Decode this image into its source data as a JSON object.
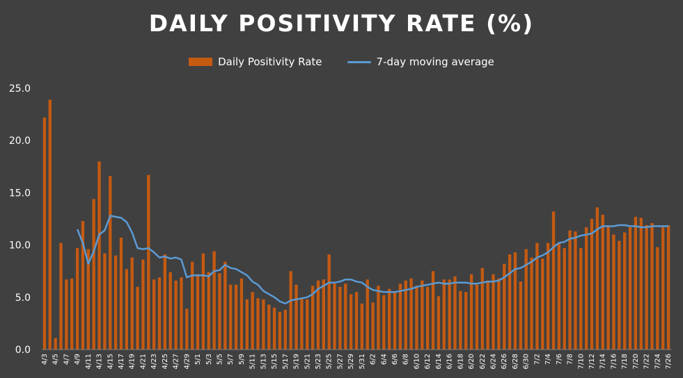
{
  "chart_data": {
    "type": "bar",
    "title": "DAILY POSITIVITY RATE (%)",
    "xlabel": "",
    "ylabel": "",
    "ylim": [
      0,
      25
    ],
    "yticks": [
      "0.0",
      "5.0",
      "10.0",
      "15.0",
      "20.0",
      "25.0"
    ],
    "grid": false,
    "legend_position": "top",
    "colors": {
      "bar": "#c55a11",
      "line": "#5b9bd5",
      "background": "#404040"
    },
    "categories": [
      "4/3",
      "4/4",
      "4/5",
      "4/6",
      "4/7",
      "4/8",
      "4/9",
      "4/10",
      "4/11",
      "4/12",
      "4/13",
      "4/14",
      "4/15",
      "4/16",
      "4/17",
      "4/18",
      "4/19",
      "4/20",
      "4/21",
      "4/22",
      "4/23",
      "4/24",
      "4/25",
      "4/26",
      "4/27",
      "4/28",
      "4/29",
      "4/30",
      "5/1",
      "5/2",
      "5/3",
      "5/4",
      "5/5",
      "5/6",
      "5/7",
      "5/8",
      "5/9",
      "5/10",
      "5/11",
      "5/12",
      "5/13",
      "5/14",
      "5/15",
      "5/16",
      "5/17",
      "5/18",
      "5/19",
      "5/20",
      "5/21",
      "5/22",
      "5/23",
      "5/24",
      "5/25",
      "5/26",
      "5/27",
      "5/28",
      "5/29",
      "5/30",
      "5/31",
      "6/1",
      "6/2",
      "6/3",
      "6/4",
      "6/5",
      "6/6",
      "6/7",
      "6/8",
      "6/9",
      "6/10",
      "6/11",
      "6/12",
      "6/13",
      "6/14",
      "6/15",
      "6/16",
      "6/17",
      "6/18",
      "6/19",
      "6/20",
      "6/21",
      "6/22",
      "6/23",
      "6/24",
      "6/25",
      "6/26",
      "6/27",
      "6/28",
      "6/29",
      "6/30",
      "7/1",
      "7/2",
      "7/3",
      "7/4",
      "7/5",
      "7/6",
      "7/7",
      "7/8",
      "7/9",
      "7/10",
      "7/11",
      "7/12",
      "7/13",
      "7/14",
      "7/15",
      "7/16",
      "7/17",
      "7/18",
      "7/19",
      "7/20",
      "7/21",
      "7/22",
      "7/23",
      "7/24",
      "7/25",
      "7/26"
    ],
    "x_tick_labels": [
      "4/3",
      "4/5",
      "4/7",
      "4/9",
      "4/11",
      "4/13",
      "4/15",
      "4/17",
      "4/19",
      "4/21",
      "4/23",
      "4/25",
      "4/27",
      "4/29",
      "5/1",
      "5/3",
      "5/5",
      "5/7",
      "5/9",
      "5/11",
      "5/13",
      "5/15",
      "5/17",
      "5/19",
      "5/21",
      "5/23",
      "5/25",
      "5/27",
      "5/29",
      "5/31",
      "6/2",
      "6/4",
      "6/6",
      "6/8",
      "6/10",
      "6/12",
      "6/14",
      "6/16",
      "6/18",
      "6/20",
      "6/22",
      "6/24",
      "6/26",
      "6/28",
      "6/30",
      "7/2",
      "7/4",
      "7/6",
      "7/8",
      "7/10",
      "7/12",
      "7/14",
      "7/16",
      "7/18",
      "7/20",
      "7/22",
      "7/24",
      "7/26"
    ],
    "series": [
      {
        "name": "Daily Positivity Rate",
        "type": "bar",
        "values": [
          22.2,
          23.9,
          1.1,
          10.2,
          6.7,
          6.8,
          9.7,
          12.3,
          9.6,
          14.4,
          18.0,
          9.2,
          16.6,
          9.0,
          10.7,
          7.7,
          8.8,
          6.0,
          8.6,
          16.7,
          6.7,
          6.9,
          9.1,
          7.4,
          6.6,
          6.9,
          3.9,
          8.4,
          7.2,
          9.2,
          7.4,
          9.4,
          7.3,
          8.4,
          6.2,
          6.2,
          6.8,
          4.8,
          5.5,
          4.9,
          4.8,
          4.3,
          4.0,
          3.6,
          3.8,
          7.5,
          6.2,
          4.9,
          4.8,
          6.1,
          6.6,
          6.7,
          9.1,
          6.3,
          6.0,
          6.3,
          5.3,
          5.5,
          4.4,
          6.7,
          4.5,
          6.1,
          5.2,
          5.8,
          5.5,
          6.3,
          6.6,
          6.8,
          6.1,
          6.6,
          6.0,
          7.5,
          5.1,
          6.7,
          6.7,
          7.0,
          5.6,
          5.5,
          7.2,
          6.2,
          7.8,
          6.6,
          7.2,
          6.8,
          8.2,
          9.1,
          9.3,
          6.5,
          9.6,
          8.8,
          10.2,
          8.7,
          10.2,
          13.2,
          10.2,
          9.7,
          11.4,
          11.3,
          9.7,
          11.7,
          12.5,
          13.6,
          12.9,
          11.8,
          11.0,
          10.4,
          11.2,
          11.7,
          12.7,
          12.6,
          11.9,
          12.1,
          9.8,
          11.7,
          11.9
        ]
      },
      {
        "name": "7-day moving average",
        "type": "line",
        "values": [
          null,
          null,
          null,
          null,
          null,
          null,
          11.5,
          10.2,
          8.2,
          9.4,
          11.0,
          11.4,
          12.8,
          12.7,
          12.6,
          12.2,
          11.2,
          9.7,
          9.6,
          9.7,
          9.3,
          8.8,
          8.9,
          8.7,
          8.8,
          8.6,
          6.9,
          7.1,
          7.1,
          7.1,
          7.0,
          7.5,
          7.6,
          8.1,
          7.8,
          7.7,
          7.4,
          7.1,
          6.5,
          6.2,
          5.6,
          5.3,
          5.0,
          4.6,
          4.4,
          4.7,
          4.8,
          4.9,
          5.0,
          5.3,
          5.8,
          6.1,
          6.4,
          6.4,
          6.5,
          6.7,
          6.7,
          6.5,
          6.4,
          6.0,
          5.7,
          5.6,
          5.5,
          5.5,
          5.5,
          5.6,
          5.7,
          5.8,
          6.0,
          6.1,
          6.2,
          6.3,
          6.4,
          6.3,
          6.3,
          6.4,
          6.4,
          6.4,
          6.3,
          6.3,
          6.4,
          6.5,
          6.5,
          6.6,
          6.9,
          7.3,
          7.7,
          7.8,
          8.1,
          8.4,
          8.8,
          9.0,
          9.3,
          9.8,
          10.2,
          10.3,
          10.6,
          10.7,
          10.9,
          11.0,
          11.1,
          11.5,
          11.8,
          11.8,
          11.8,
          11.9,
          11.9,
          11.8,
          11.8,
          11.7,
          11.7,
          11.8,
          11.8,
          11.8,
          11.8
        ]
      }
    ]
  }
}
